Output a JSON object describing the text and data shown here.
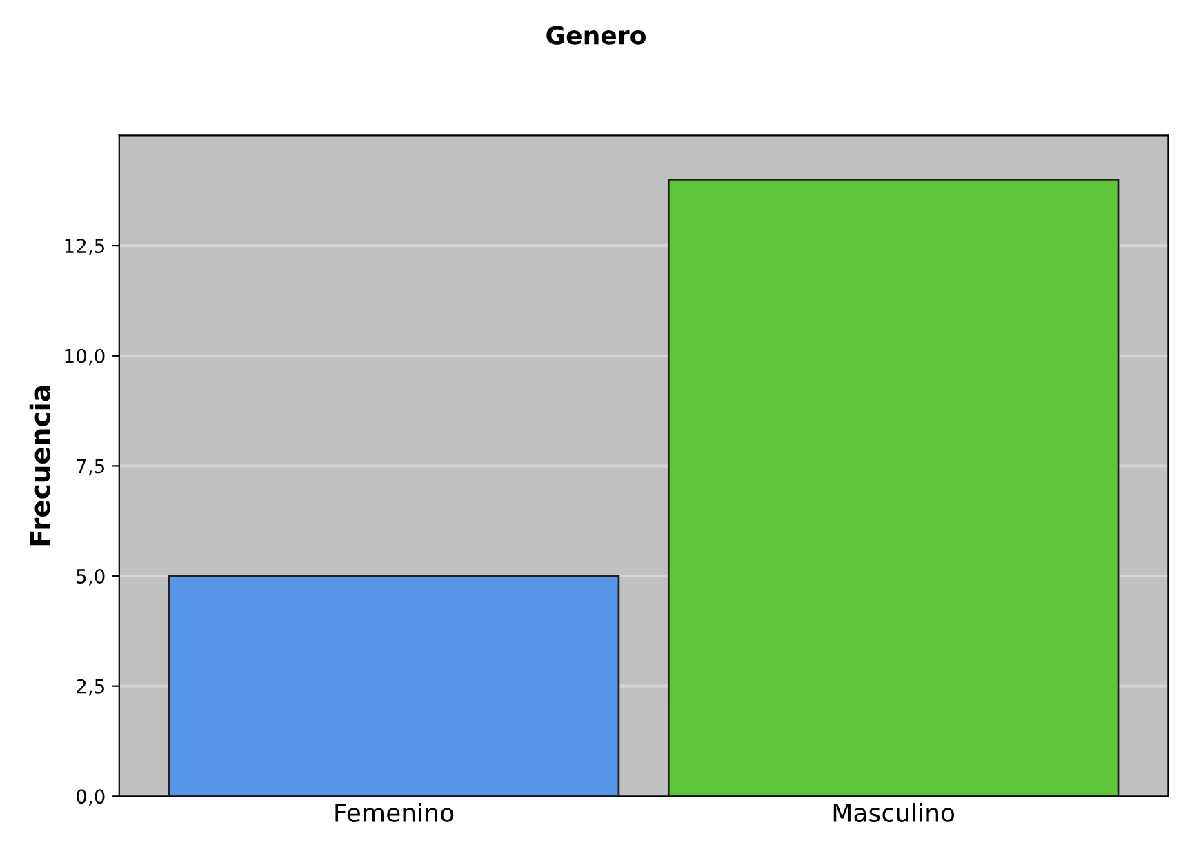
{
  "chart_data": {
    "type": "bar",
    "title": "Genero",
    "ylabel": "Frecuencia",
    "categories": [
      "Femenino",
      "Masculino"
    ],
    "values": [
      5,
      14
    ],
    "colors": [
      "#5596e6",
      "#5ec43a"
    ],
    "ylim": [
      0,
      15
    ],
    "yticks": [
      {
        "value": 0,
        "label": "0,0"
      },
      {
        "value": 2.5,
        "label": "2,5"
      },
      {
        "value": 5,
        "label": "5,0"
      },
      {
        "value": 7.5,
        "label": "7,5"
      },
      {
        "value": 10,
        "label": "10,0"
      },
      {
        "value": 12.5,
        "label": "12,5"
      }
    ],
    "grid": "y"
  }
}
